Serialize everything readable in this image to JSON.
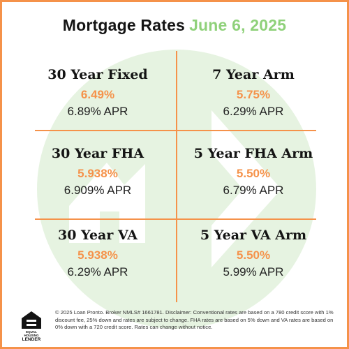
{
  "header": {
    "title": "Mortgage Rates",
    "date": "June 6, 2025"
  },
  "colors": {
    "accent_orange": "#f5924a",
    "date_green": "#8fd17a",
    "watermark_green": "#e6f3e1",
    "text_dark": "#141414"
  },
  "rates": [
    {
      "name": "30 Year Fixed",
      "rate": "6.49%",
      "apr": "6.89% APR"
    },
    {
      "name": "7 Year Arm",
      "rate": "5.75%",
      "apr": "6.29% APR"
    },
    {
      "name": "30 Year FHA",
      "rate": "5.938%",
      "apr": "6.909% APR"
    },
    {
      "name": "5 Year FHA Arm",
      "rate": "5.50%",
      "apr": "6.79% APR"
    },
    {
      "name": "30 Year VA",
      "rate": "5.938%",
      "apr": "6.29% APR"
    },
    {
      "name": "5 Year VA Arm",
      "rate": "5.50%",
      "apr": "5.99% APR"
    }
  ],
  "footer": {
    "logo_text_small": "EQUAL HOUSING",
    "logo_text_big": "LENDER",
    "disclaimer": "© 2025 Loan Pronto. Broker NMLS# 1661781. Disclaimer: Conventional rates are based on a 780 credit score with 1% discount fee, 25% down and rates are subject to change. FHA rates are based on 5% down and VA rates are based on 0% down with a 720 credit score. Rates can change without notice."
  },
  "icons": {
    "watermark": "loan-pronto-logo-watermark",
    "equal_housing": "equal-housing-lender-icon"
  }
}
